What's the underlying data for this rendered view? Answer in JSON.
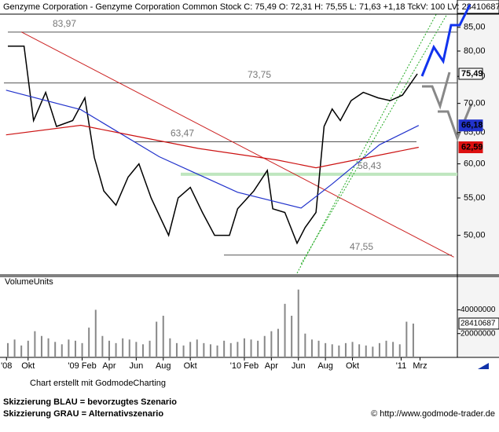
{
  "chart_data": {
    "type": "line",
    "title": "Genzyme Corporation - Genzyme Corporation Common Stock C: 75,49 O: 72,31 H: 75,55 L: 71,63 +1,18 TckV: 100 LV: 28410687",
    "log_scale": true,
    "xlim": [
      -0.08,
      33.76
    ],
    "xticks": [
      {
        "value": 0.4,
        "label": "'08"
      },
      {
        "value": 2,
        "label": "Okt"
      },
      {
        "value": 6,
        "label": "'09 Feb"
      },
      {
        "value": 8,
        "label": "Apr"
      },
      {
        "value": 10,
        "label": "Jun"
      },
      {
        "value": 12,
        "label": "Aug"
      },
      {
        "value": 14,
        "label": "Okt"
      },
      {
        "value": 18,
        "label": "'10 Feb"
      },
      {
        "value": 20,
        "label": "Apr"
      },
      {
        "value": 22,
        "label": "Jun"
      },
      {
        "value": 24,
        "label": "Aug"
      },
      {
        "value": 26,
        "label": "Okt"
      },
      {
        "value": 29.6,
        "label": "'11"
      },
      {
        "value": 31,
        "label": "Mrz"
      }
    ],
    "ylim": [
      45.2,
      87.9
    ],
    "yticks": [
      {
        "value": 50,
        "label": "50,00"
      },
      {
        "value": 55,
        "label": "55,00"
      },
      {
        "value": 60,
        "label": "60,00"
      },
      {
        "value": 65,
        "label": "65,00"
      },
      {
        "value": 70,
        "label": "70,00"
      },
      {
        "value": 75,
        "label": "75,00"
      },
      {
        "value": 80,
        "label": "80,00"
      },
      {
        "value": 85,
        "label": "85,00"
      }
    ],
    "series": [
      {
        "color": "#000000",
        "x": [
          0.5,
          1.7,
          2.4,
          3.3,
          4.1,
          5.3,
          6.2,
          6.9,
          7.6,
          8.5,
          9.4,
          10.2,
          11.1,
          12.4,
          13.1,
          14,
          14.9,
          15.8,
          16.9,
          17.5,
          18.7,
          19.7,
          20.1,
          21,
          21.9,
          22.5,
          23.3,
          23.9,
          24.5,
          25.1,
          25.9,
          26.8,
          27.9,
          28.8,
          29.7,
          30.8
        ],
        "values": [
          81,
          81,
          67,
          72,
          66,
          67,
          71,
          61,
          56,
          54,
          58,
          60,
          55,
          50,
          55,
          56.5,
          53,
          50,
          50,
          53.5,
          56,
          59,
          53.5,
          53,
          49,
          51,
          53,
          66,
          69,
          67,
          70.5,
          72,
          71,
          70.5,
          71.5,
          75.49
        ]
      },
      {
        "color": "#2233cc",
        "x": [
          0.37,
          5.9,
          11.7,
          17.5,
          22.2,
          24.5,
          28,
          30.9
        ],
        "values": [
          72.4,
          68.9,
          61.1,
          55.8,
          53.6,
          57,
          63,
          66.18
        ]
      },
      {
        "color": "#cc1111",
        "x": [
          0.37,
          5.9,
          8.8,
          14.6,
          20.4,
          23.3,
          26.2,
          30.9
        ],
        "values": [
          64.6,
          66.2,
          64.9,
          62.4,
          60.6,
          59.4,
          60.6,
          62.59
        ]
      }
    ],
    "price_labels": [
      {
        "value": 75.49,
        "label": "75,49",
        "color": "#ffffff",
        "text_color": "#444444"
      },
      {
        "value": 66.18,
        "label": "66,18",
        "color": "#2233cc",
        "text_color": "#ffffff"
      },
      {
        "value": 62.59,
        "label": "62,59",
        "color": "#dd1111",
        "text_color": "#ffffff"
      }
    ],
    "levels": [
      {
        "value": 83.97,
        "label": "83,97",
        "color": "#555555"
      },
      {
        "value": 73.75,
        "label": "73,75",
        "color": "#555555"
      },
      {
        "value": 63.47,
        "label": "63,47",
        "color": "#555555"
      },
      {
        "value": 58.43,
        "label": "58,43",
        "color": "#66bb66"
      },
      {
        "value": 47.55,
        "label": "47,55",
        "color": "#555555"
      }
    ],
    "trendlines": [
      {
        "color": "#cc2222",
        "x": [
          1.5,
          33.5
        ],
        "values": [
          84,
          47.3
        ]
      },
      {
        "color": "#22aa22",
        "x": [
          21.9,
          32.2
        ],
        "values": [
          45.4,
          87.9
        ]
      },
      {
        "color": "#22aa22",
        "x": [
          22.2,
          33.0
        ],
        "values": [
          46.5,
          87.9
        ]
      }
    ],
    "volume": {
      "label": "VolumeUnits",
      "ylim": [
        0,
        68000000
      ],
      "yticks": [
        20000000,
        40000000
      ],
      "last_label": "28410687",
      "color": "#888888",
      "x": [
        0.5,
        1,
        1.5,
        2,
        2.5,
        3,
        3.5,
        4,
        4.5,
        5,
        5.5,
        6,
        6.5,
        7,
        7.5,
        8,
        8.5,
        9,
        9.5,
        10,
        10.5,
        11,
        11.5,
        12,
        12.5,
        13,
        13.5,
        14,
        14.5,
        15,
        15.5,
        16,
        16.5,
        17,
        17.5,
        18,
        18.5,
        19,
        19.5,
        20,
        20.5,
        21,
        21.5,
        22,
        22.5,
        23,
        23.5,
        24,
        24.5,
        25,
        25.5,
        26,
        26.5,
        27,
        27.5,
        28,
        28.5,
        29,
        29.5,
        30,
        30.5
      ],
      "values": [
        12000000,
        15000000,
        10000000,
        14000000,
        22000000,
        18000000,
        16000000,
        13000000,
        11000000,
        15000000,
        14000000,
        12000000,
        25000000,
        40000000,
        18000000,
        14000000,
        12000000,
        16000000,
        15000000,
        13000000,
        11000000,
        14000000,
        30000000,
        35000000,
        16000000,
        12000000,
        10000000,
        13000000,
        15000000,
        12000000,
        11000000,
        10000000,
        14000000,
        12000000,
        13000000,
        16000000,
        15000000,
        14000000,
        18000000,
        22000000,
        24000000,
        45000000,
        35000000,
        57000000,
        20000000,
        15000000,
        14000000,
        12000000,
        11000000,
        10000000,
        12000000,
        13000000,
        11000000,
        10000000,
        9000000,
        12000000,
        14000000,
        13000000,
        11000000,
        30000000,
        28410687
      ]
    },
    "credit": "Chart erstellt mit GodmodeCharting",
    "notes": [
      "Skizzierung BLAU = bevorzugtes Szenario",
      "Skizzierung GRAU = Alternativszenario"
    ],
    "source": "© http://www.godmode-trader.de"
  }
}
